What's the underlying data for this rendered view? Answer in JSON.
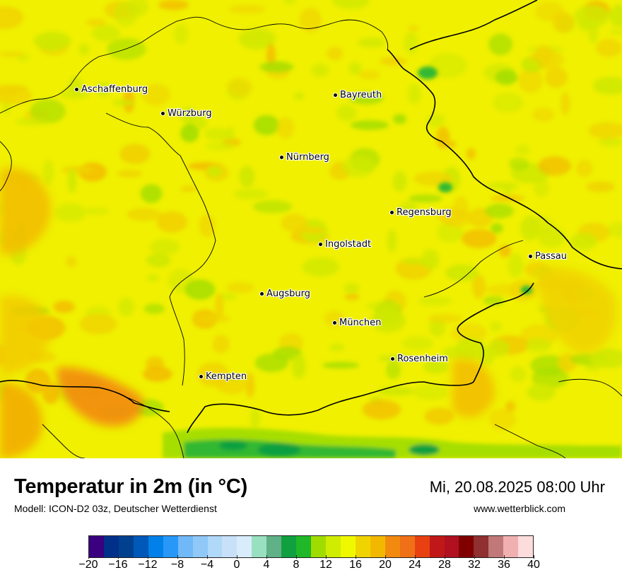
{
  "map": {
    "cities": [
      {
        "name": "Aschaffenburg"
      },
      {
        "name": "Würzburg"
      },
      {
        "name": "Bayreuth"
      },
      {
        "name": "Nürnberg"
      },
      {
        "name": "Regensburg"
      },
      {
        "name": "Ingolstadt"
      },
      {
        "name": "Passau"
      },
      {
        "name": "Augsburg"
      },
      {
        "name": "München"
      },
      {
        "name": "Rosenheim"
      },
      {
        "name": "Kempten"
      }
    ],
    "background_color": "#f0f000",
    "field_colors": [
      "#d0e800",
      "#f0d400",
      "#f2be00",
      "#a6de00",
      "#f28a10",
      "#30b830",
      "#10a040"
    ]
  },
  "legend": {
    "title": "Temperatur in 2m (in °C)",
    "subtitle": "Modell: ICON-D2 03z, Deutscher Wetterdienst",
    "datetime": "Mi, 20.08.2025 08:00 Uhr",
    "website": "www.wetterblick.com",
    "colors": [
      "#3a0080",
      "#00308a",
      "#00408e",
      "#0058b8",
      "#0080e8",
      "#2898f8",
      "#70b8f8",
      "#90c8f8",
      "#b0d8f8",
      "#c8e0f8",
      "#d8ecfc",
      "#98e0c0",
      "#60b088",
      "#10a040",
      "#20b828",
      "#a0dc00",
      "#d0ec00",
      "#f0f800",
      "#f0d400",
      "#f2b800",
      "#f28a10",
      "#f07018",
      "#e84010",
      "#c01818",
      "#b01020",
      "#800000",
      "#903030",
      "#c07878",
      "#f0b0b0",
      "#fcdcdc"
    ],
    "ticks": [
      "−20",
      "−16",
      "−12",
      "−8",
      "−4",
      "0",
      "4",
      "8",
      "12",
      "16",
      "20",
      "24",
      "28",
      "32",
      "36",
      "40"
    ]
  }
}
